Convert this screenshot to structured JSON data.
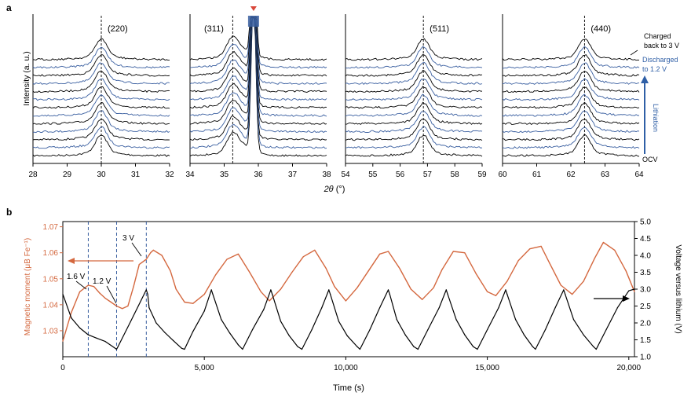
{
  "panel_a": {
    "label": "a",
    "ylabel": "Intensity (a. u.)",
    "xlabel": "2θ (°)",
    "annotations": {
      "charged": [
        "Charged",
        "back to 3 V"
      ],
      "discharged": [
        "Discharged",
        "to 1.2 V"
      ],
      "lithiation": "Lithiation",
      "ocv": "OCV"
    }
  },
  "panel_b": {
    "label": "b",
    "ylabel_left": "Magnetic moment (μB Fe⁻¹)",
    "ylabel_right": "Voltage versus lithium (V)",
    "xlabel": "Time (s)",
    "annotations": [
      "1.6 V",
      "1.2 V",
      "3 V"
    ]
  },
  "chart_data": [
    {
      "type": "line",
      "title": "(220)",
      "x_ticks": [
        28,
        29,
        30,
        31,
        32
      ],
      "xlim": [
        28,
        32
      ],
      "peak_position": 30.0,
      "n_patterns": 13,
      "series_note": "stacked XRD patterns, black = OCV / charged / intermediate, blue = during lithiation"
    },
    {
      "type": "line",
      "title": "(311)",
      "x_ticks": [
        34,
        35,
        36,
        37,
        38
      ],
      "xlim": [
        34,
        38
      ],
      "peak_position": 35.25,
      "n_patterns": 13
    },
    {
      "type": "line",
      "title": "(511)",
      "x_ticks": [
        54,
        55,
        56,
        57,
        58,
        59
      ],
      "xlim": [
        54,
        59
      ],
      "peak_position": 56.85,
      "n_patterns": 13
    },
    {
      "type": "line",
      "title": "(440)",
      "x_ticks": [
        60,
        61,
        62,
        63,
        64
      ],
      "xlim": [
        60,
        64
      ],
      "peak_position": 62.4,
      "n_patterns": 13
    },
    {
      "type": "line",
      "xlabel": "Time (s)",
      "ylabel": "Magnetic moment (μB Fe⁻¹)",
      "y2label": "Voltage versus lithium (V)",
      "xlim": [
        0,
        20200
      ],
      "ylim": [
        1.02,
        1.072
      ],
      "y2lim": [
        1.0,
        5.0
      ],
      "x_ticks": [
        0,
        5000,
        10000,
        15000,
        20000
      ],
      "x_tick_labels": [
        "0",
        "5,000",
        "10,000",
        "15,000",
        "20,000"
      ],
      "y_ticks": [
        1.03,
        1.04,
        1.05,
        1.06,
        1.07
      ],
      "y2_ticks": [
        1.0,
        1.5,
        2.0,
        2.5,
        3.0,
        3.5,
        4.0,
        4.5,
        5.0
      ],
      "reference_lines_x": [
        900,
        1900,
        2950
      ],
      "series": [
        {
          "name": "Magnetic moment",
          "color": "#d4683f",
          "axis": "left",
          "x": [
            0,
            300,
            600,
            900,
            1100,
            1300,
            1500,
            1700,
            1900,
            2100,
            2300,
            2500,
            2700,
            2950,
            3100,
            3200,
            3500,
            3800,
            4000,
            4300,
            4600,
            5000,
            5400,
            5800,
            6200,
            6600,
            7000,
            7300,
            7700,
            8100,
            8500,
            8900,
            9300,
            9600,
            10000,
            10400,
            10800,
            11200,
            11500,
            11900,
            12300,
            12700,
            13100,
            13400,
            13800,
            14200,
            14600,
            15000,
            15300,
            15700,
            16100,
            16500,
            16900,
            17200,
            17600,
            18000,
            18400,
            18800,
            19100,
            19500,
            19900,
            20200
          ],
          "values": [
            1.026,
            1.037,
            1.045,
            1.0475,
            1.047,
            1.0445,
            1.0425,
            1.041,
            1.0395,
            1.0385,
            1.0395,
            1.047,
            1.0555,
            1.0575,
            1.06,
            1.061,
            1.059,
            1.053,
            1.046,
            1.041,
            1.0405,
            1.044,
            1.0515,
            1.0575,
            1.0595,
            1.0525,
            1.045,
            1.0415,
            1.046,
            1.0525,
            1.0585,
            1.061,
            1.054,
            1.047,
            1.0415,
            1.0465,
            1.053,
            1.0595,
            1.0605,
            1.054,
            1.046,
            1.042,
            1.0465,
            1.0535,
            1.0605,
            1.06,
            1.052,
            1.045,
            1.0435,
            1.049,
            1.057,
            1.0615,
            1.0625,
            1.056,
            1.0475,
            1.044,
            1.049,
            1.058,
            1.064,
            1.061,
            1.053,
            1.045
          ]
        },
        {
          "name": "Voltage",
          "color": "#000000",
          "axis": "right",
          "x": [
            0,
            300,
            600,
            900,
            1200,
            1500,
            1900,
            1950,
            2400,
            2950,
            3000,
            3050,
            3300,
            3600,
            3900,
            4200,
            4300,
            4600,
            5000,
            5250,
            5300,
            5600,
            5900,
            6200,
            6350,
            6700,
            7100,
            7350,
            7400,
            7700,
            8000,
            8300,
            8450,
            8800,
            9150,
            9400,
            9450,
            9750,
            10050,
            10400,
            10500,
            10850,
            11200,
            11500,
            11550,
            11800,
            12100,
            12400,
            12550,
            12900,
            13300,
            13550,
            13600,
            13900,
            14200,
            14500,
            14650,
            15000,
            15400,
            15650,
            15700,
            16000,
            16300,
            16600,
            16700,
            17050,
            17400,
            17700,
            17750,
            18050,
            18400,
            18750,
            18850,
            19200,
            19600,
            20000,
            20200
          ],
          "values": [
            2.85,
            2.15,
            1.85,
            1.65,
            1.55,
            1.45,
            1.22,
            1.3,
            2.05,
            2.98,
            2.85,
            2.45,
            2.0,
            1.72,
            1.48,
            1.25,
            1.22,
            1.75,
            2.35,
            2.98,
            2.85,
            2.1,
            1.7,
            1.35,
            1.22,
            1.8,
            2.4,
            2.98,
            2.85,
            2.05,
            1.62,
            1.3,
            1.22,
            1.8,
            2.45,
            2.98,
            2.85,
            2.05,
            1.62,
            1.3,
            1.22,
            1.8,
            2.45,
            2.98,
            2.85,
            2.1,
            1.65,
            1.3,
            1.22,
            1.8,
            2.45,
            2.98,
            2.85,
            2.1,
            1.65,
            1.3,
            1.22,
            1.8,
            2.45,
            2.98,
            2.85,
            2.1,
            1.65,
            1.3,
            1.22,
            1.8,
            2.45,
            2.98,
            2.85,
            2.1,
            1.65,
            1.3,
            1.22,
            1.8,
            2.45,
            2.95,
            3.0
          ]
        }
      ]
    }
  ]
}
